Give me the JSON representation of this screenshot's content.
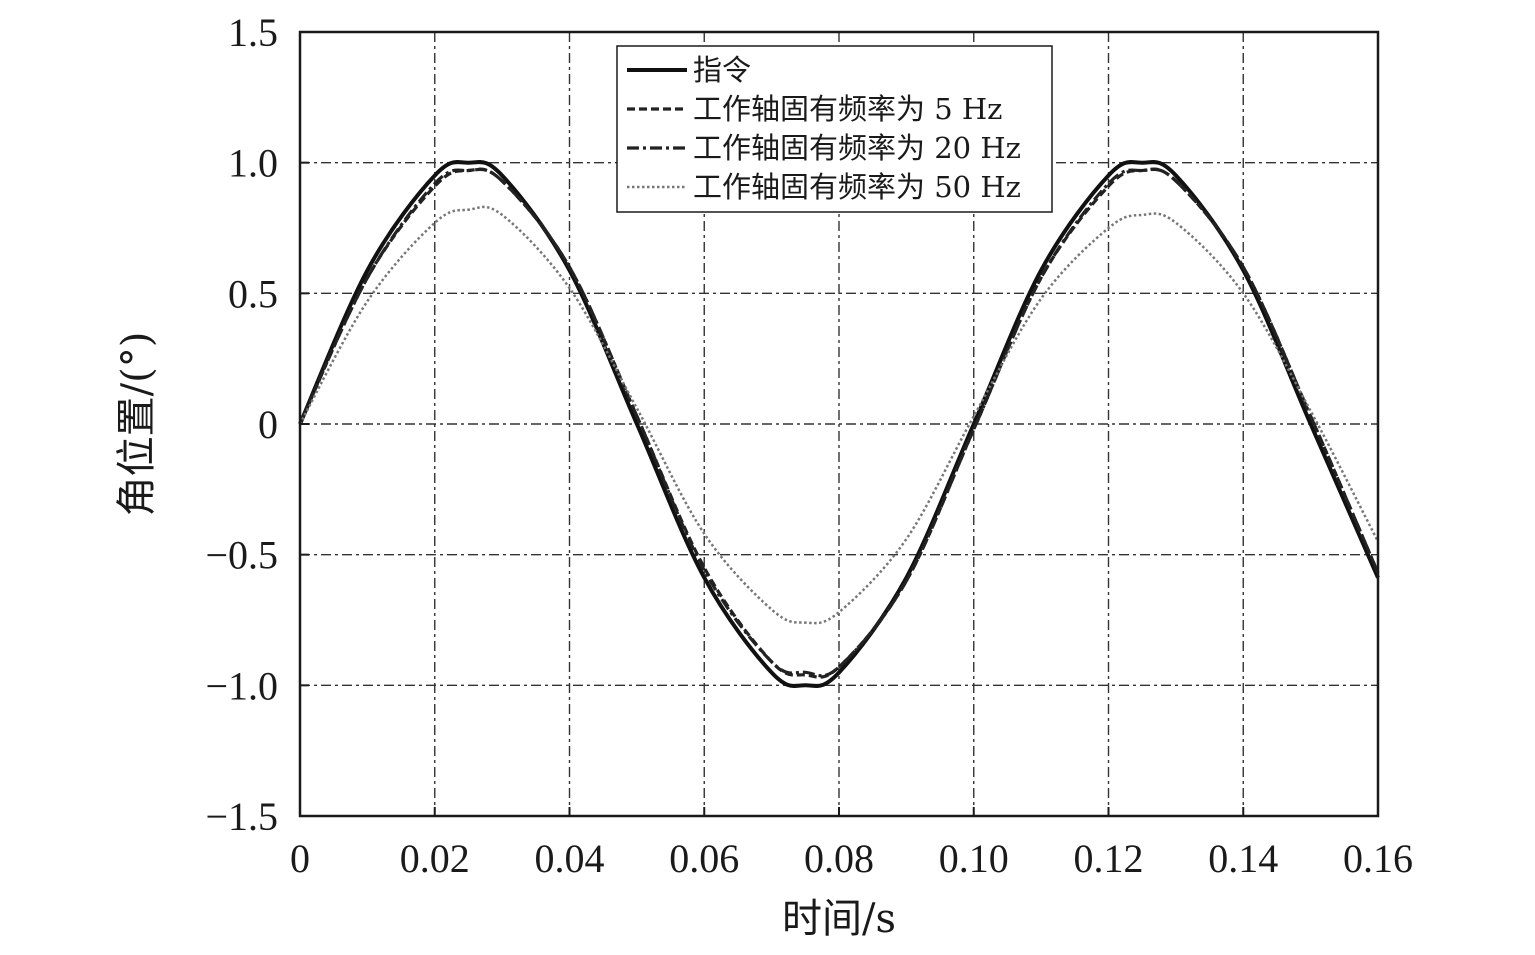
{
  "chart_data": {
    "type": "line",
    "xlabel": "时间/s",
    "ylabel": "角位置/(°)",
    "xlim": [
      0,
      0.16
    ],
    "ylim": [
      -1.5,
      1.5
    ],
    "x_ticks": [
      0,
      0.02,
      0.04,
      0.06,
      0.08,
      0.1,
      0.12,
      0.14,
      0.16
    ],
    "x_tick_labels": [
      "0",
      "0.02",
      "0.04",
      "0.06",
      "0.08",
      "0.10",
      "0.12",
      "0.14",
      "0.16"
    ],
    "y_ticks": [
      1.5,
      1.0,
      0.5,
      0,
      -0.5,
      -1.0,
      -1.5
    ],
    "y_tick_labels": [
      "1.5",
      "1.0",
      "0.5",
      "0",
      "−0.5",
      "−1.0",
      "−1.5"
    ],
    "grid": true,
    "legend_position": "top-center",
    "x": [
      0,
      0.01,
      0.02,
      0.025,
      0.03,
      0.04,
      0.05,
      0.06,
      0.07,
      0.075,
      0.08,
      0.09,
      0.1,
      0.11,
      0.12,
      0.125,
      0.13,
      0.14,
      0.15,
      0.16
    ],
    "series": [
      {
        "name": "指令",
        "style": "solid",
        "values": [
          0,
          0.588,
          0.951,
          1.0,
          0.951,
          0.588,
          0,
          -0.588,
          -0.951,
          -1.0,
          -0.951,
          -0.588,
          0,
          0.588,
          0.951,
          1.0,
          0.951,
          0.588,
          0,
          -0.588
        ]
      },
      {
        "name": "工作轴固有频率为 5 Hz",
        "style": "dashed",
        "values": [
          0,
          0.56,
          0.91,
          0.97,
          0.93,
          0.6,
          0.03,
          -0.55,
          -0.91,
          -0.96,
          -0.93,
          -0.6,
          -0.02,
          0.56,
          0.91,
          0.97,
          0.93,
          0.6,
          0.03,
          -0.57
        ]
      },
      {
        "name": "工作轴固有频率为 20 Hz",
        "style": "dash-dot",
        "values": [
          0,
          0.56,
          0.92,
          0.97,
          0.93,
          0.6,
          0.03,
          -0.56,
          -0.91,
          -0.95,
          -0.93,
          -0.6,
          -0.02,
          0.56,
          0.92,
          0.97,
          0.93,
          0.6,
          0.03,
          -0.57
        ]
      },
      {
        "name": "工作轴固有频率为 50 Hz",
        "style": "dotted",
        "values": [
          0,
          0.47,
          0.77,
          0.82,
          0.8,
          0.52,
          0.06,
          -0.42,
          -0.71,
          -0.76,
          -0.72,
          -0.44,
          0.03,
          0.48,
          0.75,
          0.8,
          0.77,
          0.5,
          0.05,
          -0.45
        ]
      }
    ]
  }
}
